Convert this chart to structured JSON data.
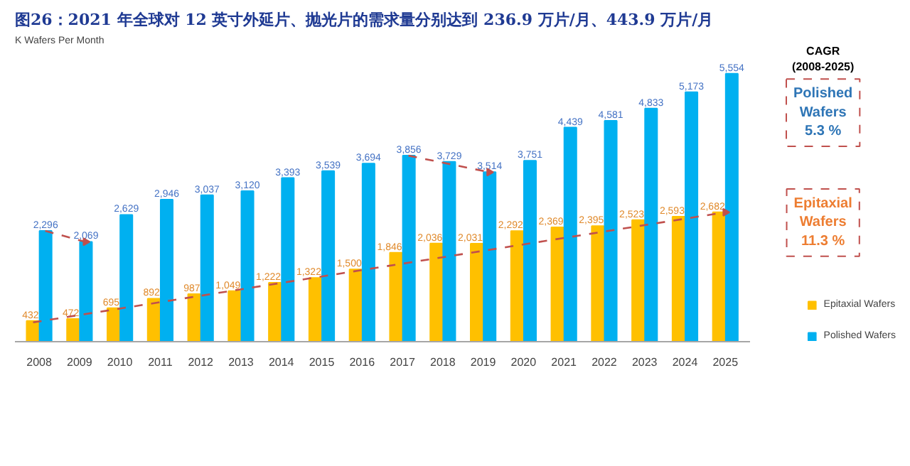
{
  "chart_data": {
    "type": "bar",
    "title": "图26：2021 年全球对 12 英寸外延片、抛光片的需求量分别达到 236.9 万片/月、443.9 万片/月",
    "ylabel": "K Wafers Per Month",
    "x": [
      2008,
      2009,
      2010,
      2011,
      2012,
      2013,
      2014,
      2015,
      2016,
      2017,
      2018,
      2019,
      2020,
      2021,
      2022,
      2023,
      2024,
      2025
    ],
    "xlim": [
      2007.4,
      2025.6
    ],
    "xticks": [
      2008,
      2009,
      2010,
      2011,
      2012,
      2013,
      2014,
      2015,
      2016,
      2017,
      2018,
      2019,
      2020,
      2021,
      2022,
      2023,
      2024,
      2025
    ],
    "series": [
      {
        "name": "Epitaxial Wafers",
        "color": "#ffc000",
        "values": [
          432,
          472,
          695,
          892,
          987,
          1049,
          1222,
          1322,
          1500,
          1846,
          2036,
          2031,
          2292,
          2369,
          2395,
          2523,
          2593,
          2682
        ],
        "value_labels": [
          "432",
          "472",
          "695",
          "892",
          "987",
          "1,049",
          "1,222",
          "1,322",
          "1,500",
          "1,846",
          "2,036",
          "2,031",
          "2,292",
          "2,369",
          "2,395",
          "2,523",
          "2,593",
          "2,682"
        ]
      },
      {
        "name": "Polished Wafers",
        "color": "#00b0f0",
        "values": [
          2296,
          2069,
          2629,
          2946,
          3037,
          3120,
          3393,
          3539,
          3694,
          3856,
          3729,
          3514,
          3751,
          4439,
          4581,
          4833,
          5173,
          5554
        ],
        "value_labels": [
          "2,296",
          "2,069",
          "2,629",
          "2,946",
          "3,037",
          "3,120",
          "3,393",
          "3,539",
          "3,694",
          "3,856",
          "3,729",
          "3,514",
          "3,751",
          "4,439",
          "4,581",
          "4,833",
          "5,173",
          "5,554"
        ]
      },
      {
        "type": "line",
        "color": "#c0504d",
        "line_style": "dashed",
        "x": [
          2008.15,
          2009.15
        ],
        "values": [
          2296,
          2069
        ]
      },
      {
        "type": "line",
        "color": "#c0504d",
        "line_style": "dashed",
        "x": [
          2017.15,
          2019.15
        ],
        "values": [
          3856,
          3514
        ]
      },
      {
        "type": "line",
        "color": "#c0504d",
        "line_style": "dashed",
        "x": [
          2007.85,
          2025
        ],
        "values": [
          400,
          2682
        ]
      }
    ],
    "legend": "bottom right",
    "grid": false,
    "annotations": [
      "CAGR\n(2008-2025)",
      "Polished\nWafers\n5.3 %",
      "Epitaxial\nWafers\n11.3 %"
    ]
  }
}
